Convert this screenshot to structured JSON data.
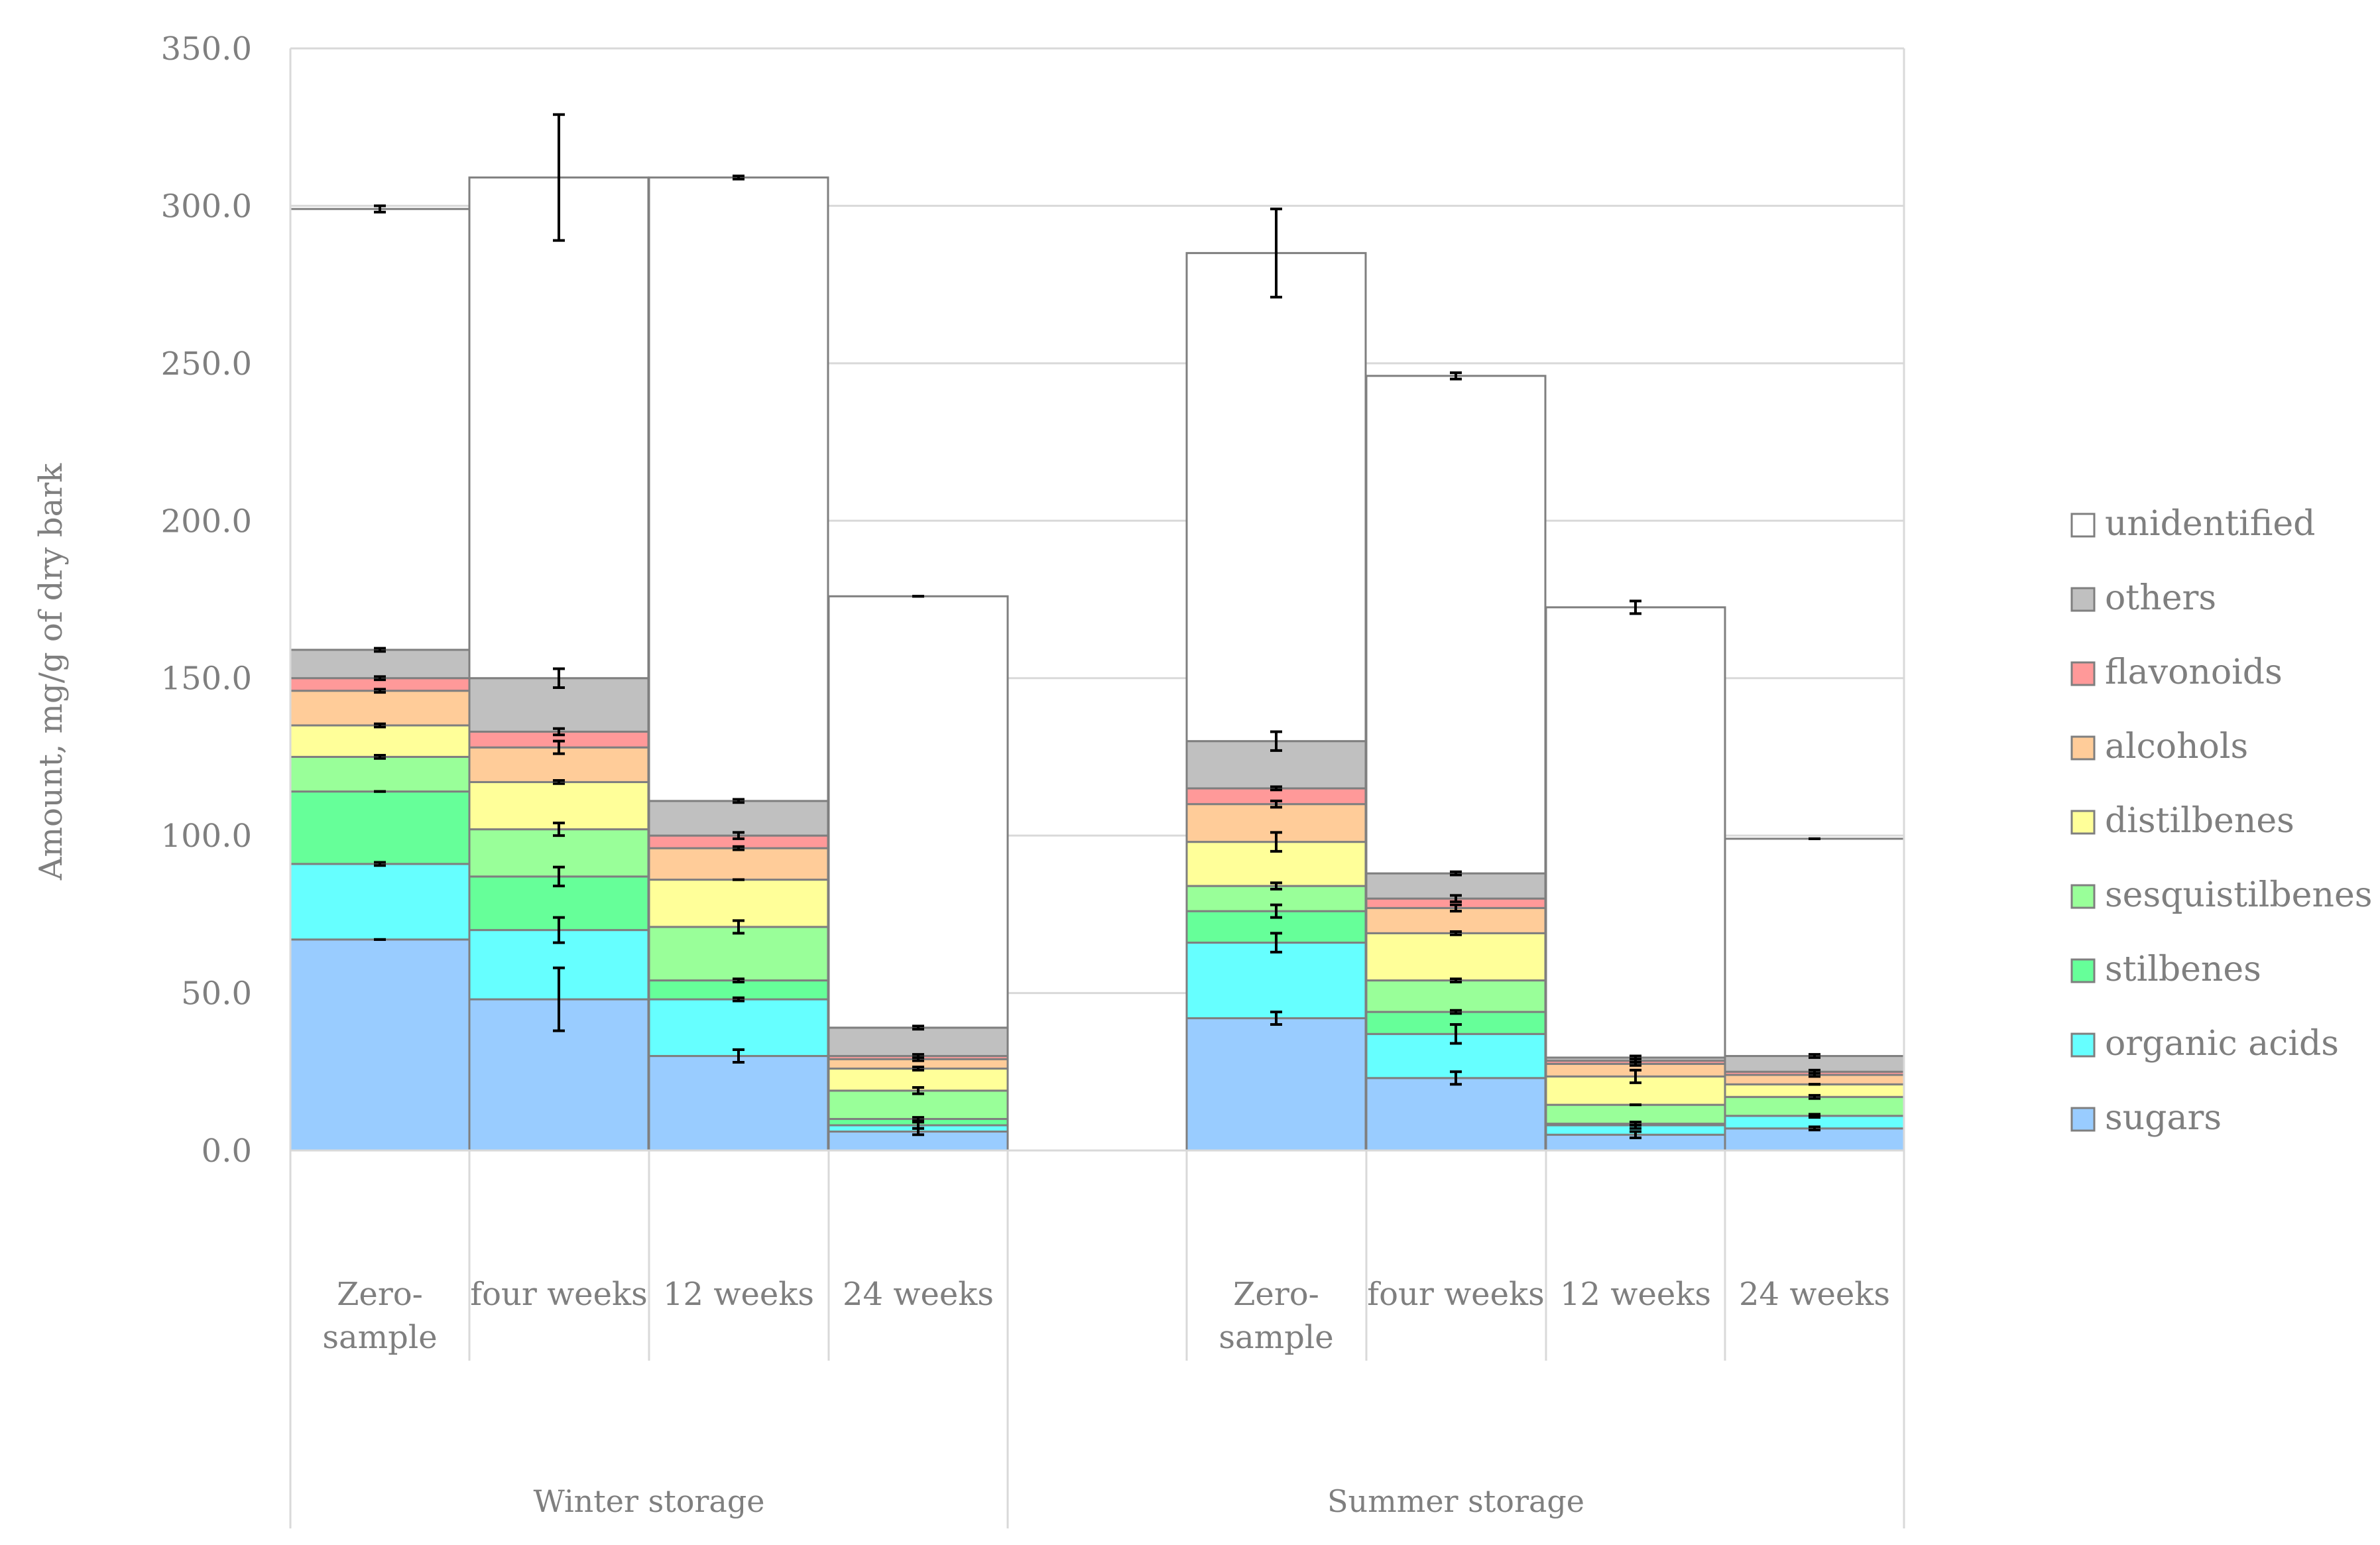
{
  "chart_data": {
    "type": "bar",
    "stacked": true,
    "ylabel": "Amount, mg/g of dry bark",
    "ylim": [
      0,
      350
    ],
    "yticks": [
      "0.0",
      "50.0",
      "100.0",
      "150.0",
      "200.0",
      "250.0",
      "300.0",
      "350.0"
    ],
    "grid": true,
    "legend_position": "right",
    "groups": [
      {
        "label": "Winter storage",
        "categories": [
          "Zero-sample",
          "four weeks",
          "12 weeks",
          "24 weeks"
        ]
      },
      {
        "label": "Summer storage",
        "categories": [
          "Zero-sample",
          "four weeks",
          "12 weeks",
          "24 weeks"
        ]
      }
    ],
    "category_label_lines": [
      [
        "Zero-",
        "sample"
      ],
      [
        "four weeks"
      ],
      [
        "12 weeks"
      ],
      [
        "24 weeks"
      ],
      [
        "Zero-",
        "sample"
      ],
      [
        "four weeks"
      ],
      [
        "12 weeks"
      ],
      [
        "24 weeks"
      ]
    ],
    "series": [
      {
        "name": "sugars",
        "color": "#99ccff",
        "values": [
          67,
          48,
          30,
          6,
          42,
          23,
          5,
          7
        ],
        "errors": [
          0,
          10,
          2,
          1,
          2,
          2,
          1,
          0.5
        ]
      },
      {
        "name": "organic acids",
        "color": "#66ffff",
        "values": [
          24,
          22,
          18,
          2,
          24,
          14,
          3,
          4
        ],
        "errors": [
          0.5,
          4,
          0.5,
          1,
          3,
          3,
          1,
          0.5
        ]
      },
      {
        "name": "stilbenes",
        "color": "#66ff99",
        "values": [
          23,
          17,
          6,
          2,
          10,
          7,
          0.5,
          0
        ],
        "errors": [
          0,
          3,
          0.5,
          0.5,
          2,
          0.5,
          0.5,
          0
        ]
      },
      {
        "name": "sesquistilbenes",
        "color": "#99ff99",
        "values": [
          11,
          15,
          17,
          9,
          8,
          10,
          6,
          6
        ],
        "errors": [
          0.5,
          2,
          2,
          1,
          1,
          0.5,
          0,
          0.5
        ]
      },
      {
        "name": "distilbenes",
        "color": "#ffff99",
        "values": [
          10,
          15,
          15,
          7,
          14,
          15,
          9,
          4
        ],
        "errors": [
          0.5,
          0.5,
          0,
          0.5,
          3,
          0.5,
          2,
          0
        ]
      },
      {
        "name": "alcohols",
        "color": "#ffcc99",
        "values": [
          11,
          11,
          10,
          3,
          12,
          8,
          4,
          3
        ],
        "errors": [
          0.5,
          2,
          0.5,
          0.5,
          1,
          1,
          0.5,
          0.5
        ]
      },
      {
        "name": "flavonoids",
        "color": "#ff9999",
        "values": [
          4,
          5,
          4,
          1,
          5,
          3,
          1,
          1
        ],
        "errors": [
          0.5,
          1,
          1,
          0.5,
          0.5,
          1,
          0.5,
          0.5
        ]
      },
      {
        "name": "others",
        "color": "#c0c0c0",
        "values": [
          9,
          17,
          11,
          9,
          15,
          8,
          1,
          5
        ],
        "errors": [
          0.5,
          3,
          0.5,
          0.5,
          3,
          0.5,
          0.5,
          0.5
        ]
      },
      {
        "name": "unidentified",
        "color": "#ffffff",
        "values": [
          140,
          159,
          198,
          137,
          155,
          158,
          143,
          69
        ],
        "errors": [
          1,
          20,
          0.5,
          0,
          14,
          1,
          2,
          0
        ]
      }
    ]
  }
}
